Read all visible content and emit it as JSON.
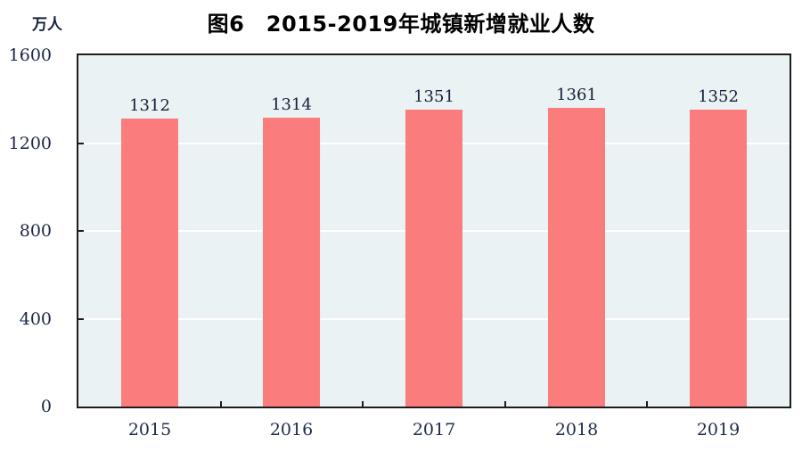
{
  "chart_data": {
    "type": "bar",
    "title": "图6　2015-2019年城镇新增就业人数",
    "unit_label": "万人",
    "categories": [
      "2015",
      "2016",
      "2017",
      "2018",
      "2019"
    ],
    "values": [
      1312,
      1314,
      1351,
      1361,
      1352
    ],
    "value_labels": [
      "1312",
      "1314",
      "1351",
      "1361",
      "1352"
    ],
    "ylim": [
      0,
      1600
    ],
    "yticks": [
      0,
      400,
      800,
      1200,
      1600
    ],
    "ytick_labels": [
      "0",
      "400",
      "800",
      "1200",
      "1600"
    ],
    "grid": true,
    "legend": "none",
    "colors": {
      "bar": "#FA7C7C",
      "plot_background": "#EBF2F4",
      "gridline": "#FFFFFF",
      "axis": "#1C1C1C",
      "title_text": "#000000",
      "label_text": "#1B2544"
    }
  }
}
